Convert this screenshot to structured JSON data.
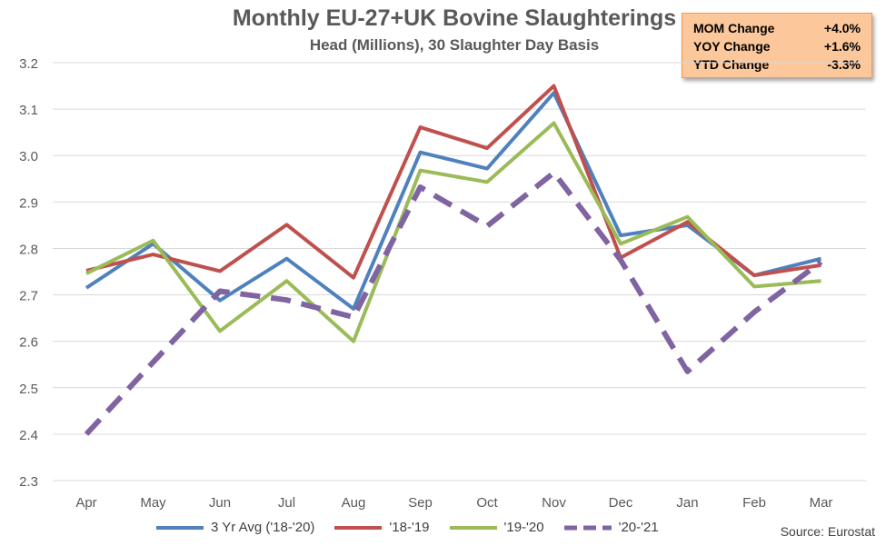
{
  "title": "Monthly EU-27+UK Bovine Slaughterings",
  "subtitle": "Head (Millions), 30 Slaughter Day Basis",
  "stats": [
    {
      "label": "MOM Change",
      "value": "+4.0%"
    },
    {
      "label": "YOY Change",
      "value": "+1.6%"
    },
    {
      "label": "YTD Change",
      "value": "-3.3%"
    }
  ],
  "source": "Source: Eurostat",
  "chart_data": {
    "type": "line",
    "title": "Monthly EU-27+UK Bovine Slaughterings",
    "subtitle": "Head (Millions), 30 Slaughter Day Basis",
    "x": [
      "Apr",
      "May",
      "Jun",
      "Jul",
      "Aug",
      "Sep",
      "Oct",
      "Nov",
      "Dec",
      "Jan",
      "Feb",
      "Mar"
    ],
    "ylim": [
      2.3,
      3.2
    ],
    "yticks": [
      "2.3",
      "2.4",
      "2.5",
      "2.6",
      "2.7",
      "2.8",
      "2.9",
      "3.0",
      "3.1",
      "3.2"
    ],
    "grid": true,
    "legend": "bottom",
    "series": [
      {
        "name": "3 Yr Avg ('18-'20)",
        "color": "#4f81bd",
        "dash": false,
        "values": [
          2.715,
          2.81,
          2.688,
          2.778,
          2.67,
          3.007,
          2.972,
          3.135,
          2.828,
          2.85,
          2.742,
          2.778
        ]
      },
      {
        "name": "'18-'19",
        "color": "#c0504d",
        "dash": false,
        "values": [
          2.752,
          2.787,
          2.751,
          2.851,
          2.737,
          3.061,
          3.016,
          3.15,
          2.78,
          2.857,
          2.742,
          2.764
        ]
      },
      {
        "name": "'19-'20",
        "color": "#9bbb59",
        "dash": false,
        "values": [
          2.746,
          2.817,
          2.622,
          2.73,
          2.6,
          2.968,
          2.943,
          3.07,
          2.81,
          2.868,
          2.718,
          2.73
        ]
      },
      {
        "name": "'20-'21",
        "color": "#8064a2",
        "dash": true,
        "values": [
          2.4,
          2.555,
          2.708,
          2.689,
          2.652,
          2.932,
          2.848,
          2.963,
          2.775,
          2.535,
          2.663,
          2.771
        ]
      }
    ]
  }
}
